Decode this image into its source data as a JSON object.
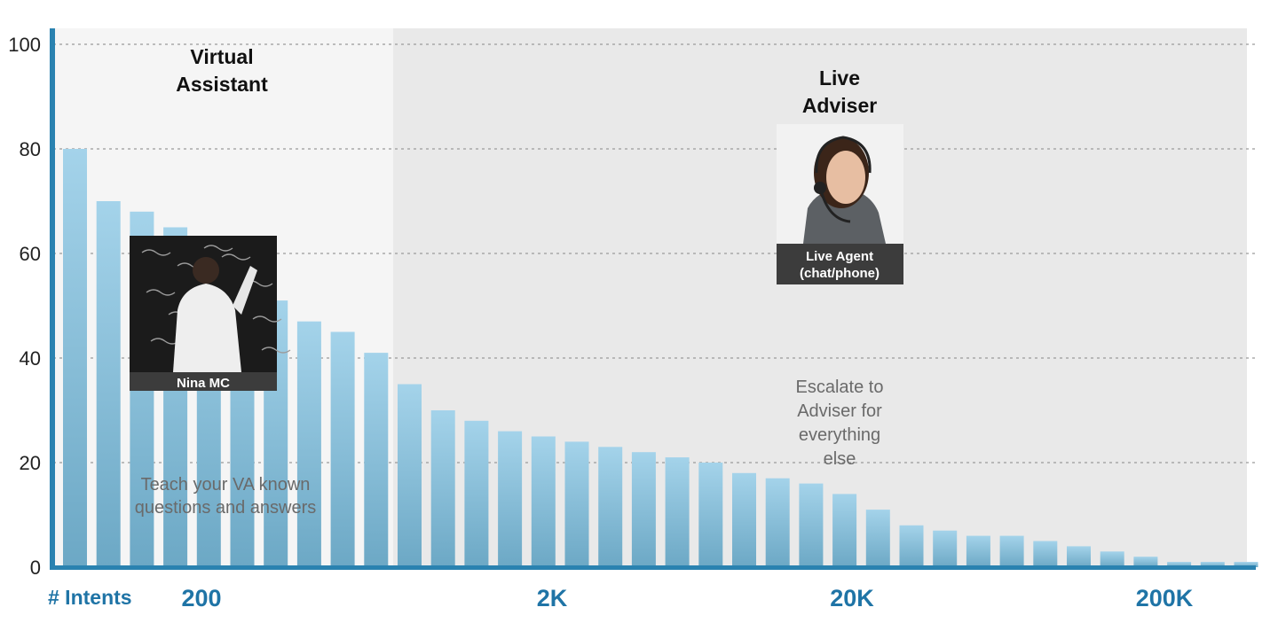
{
  "chart_data": {
    "type": "bar",
    "ylim": [
      0,
      100
    ],
    "yticks": [
      0,
      20,
      40,
      60,
      80,
      100
    ],
    "grid": true,
    "values": [
      80,
      70,
      68,
      65,
      63,
      58,
      51,
      47,
      45,
      41,
      35,
      30,
      28,
      26,
      25,
      24,
      23,
      22,
      21,
      20,
      18,
      17,
      16,
      14,
      11,
      8,
      7,
      6,
      6,
      5,
      4,
      3,
      2,
      1,
      1,
      1
    ],
    "x_axis_label": "# Intents",
    "x_tick_labels": [
      "200",
      "2K",
      "20K",
      "200K"
    ],
    "regions": [
      {
        "title_lines": [
          "Virtual",
          "Assistant"
        ],
        "bars": 10,
        "annotation_lines": [
          "Teach your VA known",
          "questions and answers"
        ]
      },
      {
        "title_lines": [
          "Live",
          "Adviser"
        ],
        "bars": 26,
        "annotation_lines": [
          "Escalate to",
          "Adviser for",
          "everything",
          "else"
        ]
      }
    ],
    "photos": [
      {
        "name": "teacher-at-blackboard",
        "caption_lines": [
          "Nina MC"
        ]
      },
      {
        "name": "headset-agent",
        "caption_lines": [
          "Live Agent",
          "(chat/phone)"
        ]
      }
    ],
    "colors": {
      "bar_top": "#a4d3ea",
      "bar_bottom": "#6ca8c5",
      "axis": "#2a82b0",
      "region_va": "#f5f5f5",
      "region_live": "#e9e9e9",
      "label_blue": "#1f74a6"
    }
  }
}
